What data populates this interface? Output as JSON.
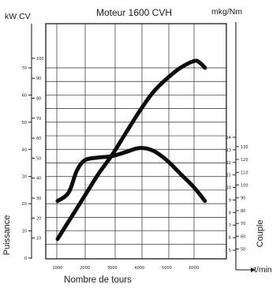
{
  "chart_data": {
    "type": "line",
    "title": "Moteur 1600 CVH",
    "xlabel": "Nombre de tours",
    "x_unit": "t/min",
    "left_units": "kW CV",
    "left_label": "Puissance",
    "right_units": "mkg/Nm",
    "right_label": "Couple",
    "x_ticks": [
      "1000",
      "2000",
      "3000",
      "4000",
      "5000",
      "6000"
    ],
    "xlim": [
      1000,
      6500
    ],
    "ylim_kw": [
      0,
      75
    ],
    "kw_ticks": [
      "0",
      "10",
      "20",
      "30",
      "40",
      "50",
      "60",
      "70"
    ],
    "cv_ticks": [
      "10",
      "20",
      "30",
      "40",
      "50",
      "60",
      "70",
      "80",
      "90",
      "100"
    ],
    "right_ticks_mkg": [
      "5",
      "6",
      "7",
      "8",
      "9",
      "10",
      "11",
      "12",
      "13",
      "14"
    ],
    "right_ticks_nm": [
      "50",
      "60",
      "70",
      "80",
      "90",
      "100",
      "110",
      "120",
      "130"
    ],
    "series": [
      {
        "x": [
          1000,
          1500,
          2000,
          2500,
          3000,
          3500,
          4000,
          4500,
          5000,
          5500,
          6000,
          6200,
          6400
        ],
        "kw": [
          7,
          15,
          23,
          31,
          38,
          46,
          54,
          61,
          66,
          70,
          72.5,
          72,
          70
        ]
      },
      {
        "x": [
          1000,
          1400,
          1700,
          2000,
          2500,
          3000,
          3500,
          4000,
          4500,
          5000,
          5500,
          6000,
          6400
        ],
        "kw": [
          21,
          24,
          32,
          36,
          37,
          37.5,
          39,
          40.5,
          39.5,
          36,
          31,
          26,
          21
        ]
      }
    ]
  }
}
